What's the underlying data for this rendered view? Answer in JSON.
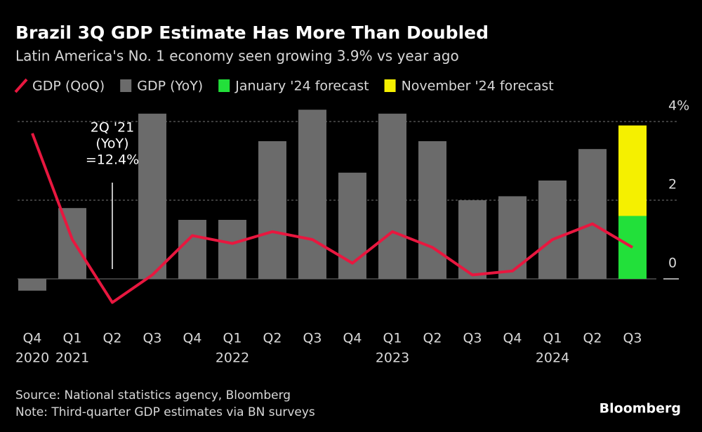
{
  "chart_data": {
    "type": "bar",
    "title": "Brazil 3Q GDP Estimate Has More Than Doubled",
    "subtitle": "Latin America's No. 1 economy seen growing 3.9% vs year ago",
    "categories": [
      "Q4",
      "Q1",
      "Q2",
      "Q3",
      "Q4",
      "Q1",
      "Q2",
      "Q3",
      "Q4",
      "Q1",
      "Q2",
      "Q3",
      "Q4",
      "Q1",
      "Q2",
      "Q3"
    ],
    "year_labels": [
      "2020",
      "2021",
      null,
      null,
      null,
      "2022",
      null,
      null,
      null,
      "2023",
      null,
      null,
      null,
      "2024",
      null,
      null
    ],
    "series": [
      {
        "name": "GDP (QoQ)",
        "type": "line",
        "color": "#e8173f",
        "values": [
          3.7,
          1.0,
          -0.6,
          0.1,
          1.1,
          0.9,
          1.2,
          1.0,
          0.4,
          1.2,
          0.8,
          0.1,
          0.2,
          1.0,
          1.4,
          0.8
        ]
      },
      {
        "name": "GDP (YoY)",
        "type": "bar",
        "color": "#6b6b6b",
        "values": [
          -0.3,
          1.8,
          null,
          4.2,
          1.5,
          1.5,
          3.5,
          4.3,
          2.7,
          4.2,
          3.5,
          2.0,
          2.1,
          2.5,
          3.3,
          null
        ]
      },
      {
        "name": "January '24 forecast",
        "type": "bar",
        "color": "#22e03a",
        "values": [
          null,
          null,
          null,
          null,
          null,
          null,
          null,
          null,
          null,
          null,
          null,
          null,
          null,
          null,
          null,
          1.6
        ]
      },
      {
        "name": "November '24 forecast",
        "type": "bar",
        "color": "#f5f000",
        "values": [
          null,
          null,
          null,
          null,
          null,
          null,
          null,
          null,
          null,
          null,
          null,
          null,
          null,
          null,
          null,
          3.9
        ]
      }
    ],
    "ylim": [
      -1.1,
      4.4
    ],
    "yticks": [
      0,
      2,
      {
        "value": 4,
        "label": "4%"
      }
    ],
    "grid": true,
    "annotation": {
      "lines": [
        "2Q '21",
        "(YoY)",
        "=12.4%"
      ],
      "category": 2
    },
    "source": "Source: National statistics agency, Bloomberg",
    "note": "Note: Third-quarter GDP estimates via BN surveys",
    "brand": "Bloomberg"
  }
}
